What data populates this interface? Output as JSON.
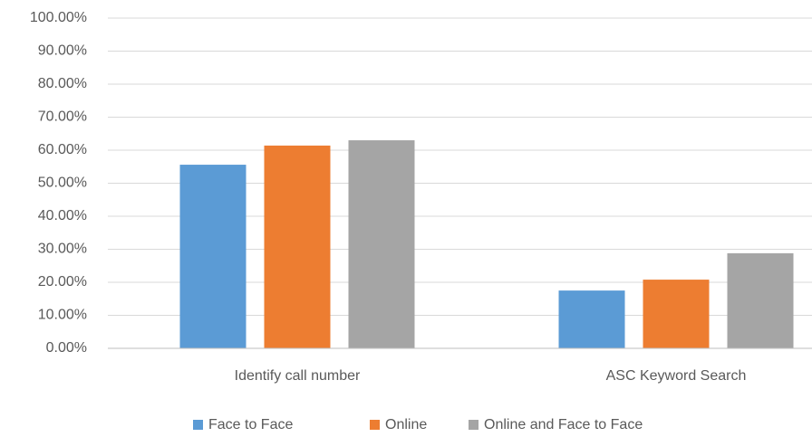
{
  "chart_data": {
    "type": "bar",
    "categories": [
      "Identify call number",
      "ASC Keyword Search"
    ],
    "series": [
      {
        "name": "Face to Face",
        "color": "#5b9bd5",
        "values": [
          55.6,
          17.5
        ]
      },
      {
        "name": "Online",
        "color": "#ed7d31",
        "values": [
          61.4,
          20.8
        ]
      },
      {
        "name": "Online and Face to Face",
        "color": "#a5a5a5",
        "values": [
          63.0,
          28.8
        ]
      }
    ],
    "ylim": [
      0,
      100
    ],
    "yticks": [
      {
        "value": 0,
        "label": "0.00%"
      },
      {
        "value": 10,
        "label": "10.00%"
      },
      {
        "value": 20,
        "label": "20.00%"
      },
      {
        "value": 30,
        "label": "30.00%"
      },
      {
        "value": 40,
        "label": "40.00%"
      },
      {
        "value": 50,
        "label": "50.00%"
      },
      {
        "value": 60,
        "label": "60.00%"
      },
      {
        "value": 70,
        "label": "70.00%"
      },
      {
        "value": 80,
        "label": "80.00%"
      },
      {
        "value": 90,
        "label": "90.00%"
      },
      {
        "value": 100,
        "label": "100.00%"
      }
    ],
    "grid": true,
    "legend": "bottom"
  }
}
